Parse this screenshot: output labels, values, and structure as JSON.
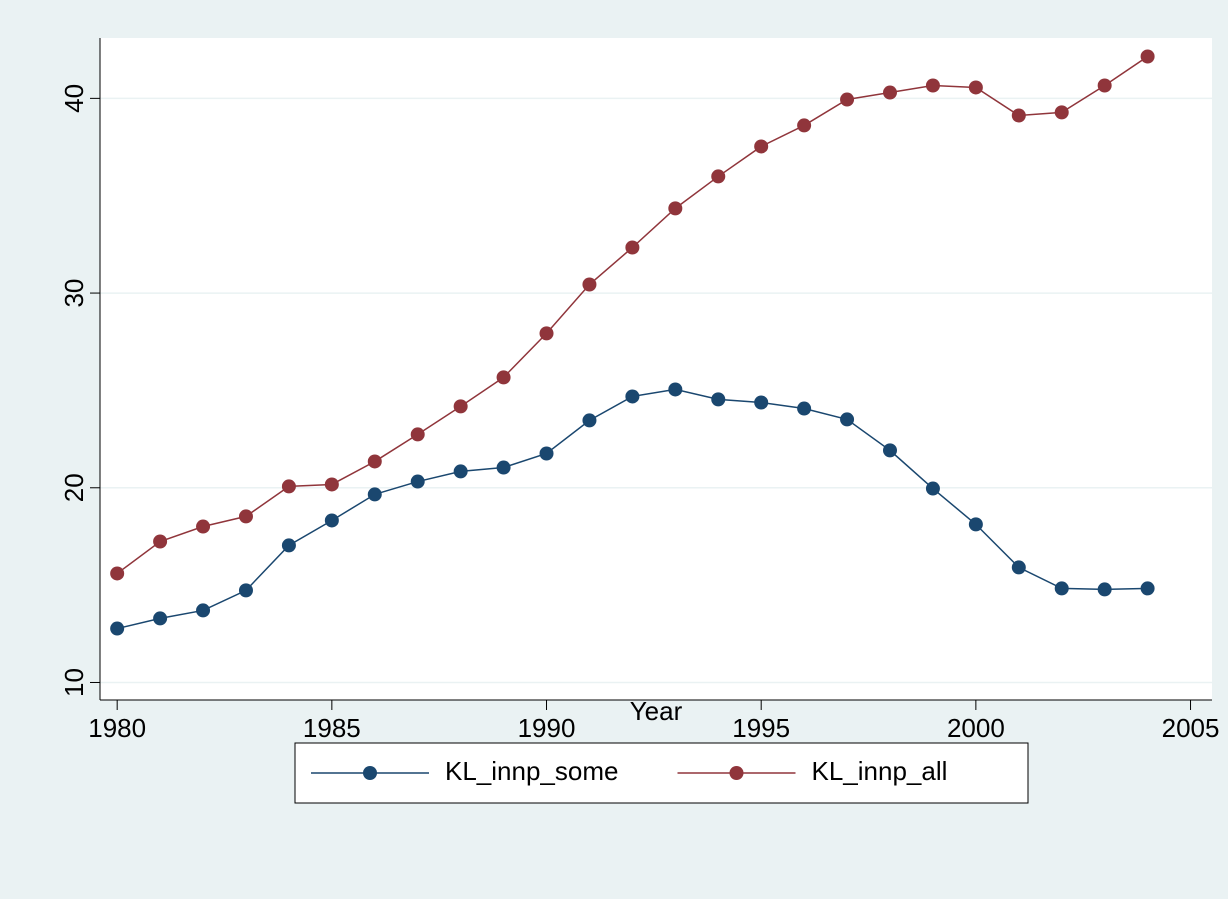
{
  "chart_data": {
    "type": "line",
    "x_label": "Year",
    "x": [
      1980,
      1981,
      1982,
      1983,
      1984,
      1985,
      1986,
      1987,
      1988,
      1989,
      1990,
      1991,
      1992,
      1993,
      1994,
      1995,
      1996,
      1997,
      1998,
      1999,
      2000,
      2001,
      2002,
      2003,
      2004
    ],
    "series": [
      {
        "name": "KL_innp_some",
        "color": "#1a476f",
        "values": [
          12.77,
          13.29,
          13.7,
          14.73,
          17.04,
          18.32,
          19.66,
          20.32,
          20.84,
          21.04,
          21.76,
          23.46,
          24.69,
          25.05,
          24.54,
          24.38,
          24.07,
          23.51,
          21.92,
          19.96,
          18.12,
          15.91,
          14.83,
          14.78,
          14.83
        ]
      },
      {
        "name": "KL_innp_all",
        "color": "#90353b",
        "values": [
          15.6,
          17.24,
          18.01,
          18.53,
          20.07,
          20.17,
          21.35,
          22.74,
          24.18,
          25.67,
          27.93,
          30.44,
          32.34,
          34.35,
          35.99,
          37.53,
          38.61,
          39.94,
          40.3,
          40.66,
          40.56,
          39.12,
          39.28,
          40.66,
          42.15
        ]
      }
    ],
    "xlim": [
      1979.6,
      2005.5
    ],
    "xticks": [
      1980,
      1985,
      1990,
      1995,
      2000,
      2005
    ],
    "ylim": [
      9.1,
      43.1
    ],
    "yticks": [
      10,
      20,
      30,
      40
    ],
    "grid": true,
    "markers": true,
    "legend": "bottom"
  }
}
